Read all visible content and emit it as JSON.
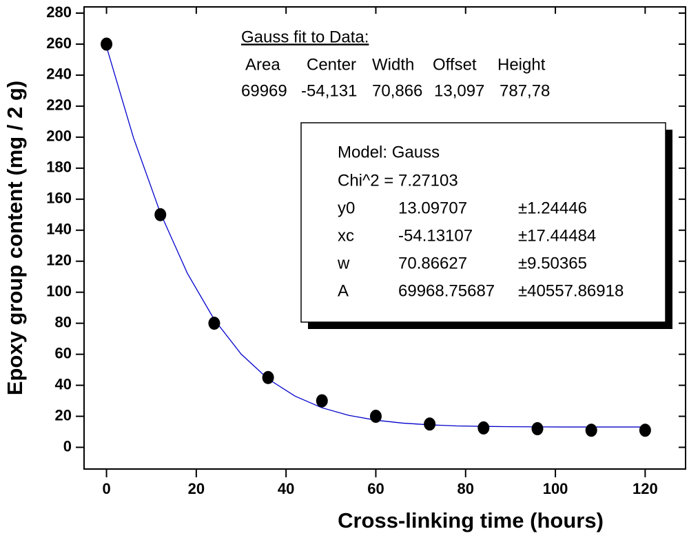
{
  "chart_data": {
    "type": "scatter",
    "xlabel": "Cross-linking time  (hours)",
    "ylabel": "Epoxy group content  (mg / 2 g)",
    "x": [
      0,
      12,
      24,
      36,
      48,
      60,
      72,
      84,
      96,
      108,
      120
    ],
    "values": [
      260,
      150,
      80,
      45,
      30,
      20,
      15,
      12.5,
      12,
      11,
      11
    ],
    "color": "#000000",
    "fit": {
      "color": "#0000cc",
      "x": [
        0,
        6,
        12,
        18,
        24,
        30,
        36,
        42,
        48,
        54,
        60,
        66,
        72,
        78,
        84,
        90,
        96,
        102,
        108,
        114,
        120
      ],
      "values": [
        258.3,
        199.7,
        151.1,
        112.3,
        82.4,
        60.1,
        44.1,
        33.0,
        25.5,
        20.6,
        17.5,
        15.6,
        14.5,
        13.8,
        13.5,
        13.3,
        13.2,
        13.1,
        13.1,
        13.1,
        13.1
      ]
    },
    "xlim": [
      -5,
      129
    ],
    "ylim": [
      -14,
      284
    ],
    "xticks": [
      0,
      20,
      40,
      60,
      80,
      100,
      120
    ],
    "yticks": [
      0,
      20,
      40,
      60,
      80,
      100,
      120,
      140,
      160,
      180,
      200,
      220,
      240,
      260,
      280
    ],
    "fit_summary": {
      "title": "Gauss fit to Data:",
      "headers": [
        "Area",
        "Center",
        "Width",
        "Offset",
        "Height"
      ],
      "values": [
        "69969",
        "-54,131",
        "70,866",
        "13,097",
        "787,78"
      ]
    },
    "fit_box": {
      "model": "Model: Gauss",
      "chi": "Chi^2 = 7.27103",
      "rows": [
        [
          "y0",
          "13.09707",
          "±1.24446"
        ],
        [
          "xc",
          "-54.13107",
          "±17.44484"
        ],
        [
          "w",
          "70.86627",
          "±9.50365"
        ],
        [
          "A",
          "69968.75687",
          "±40557.86918"
        ]
      ]
    }
  }
}
